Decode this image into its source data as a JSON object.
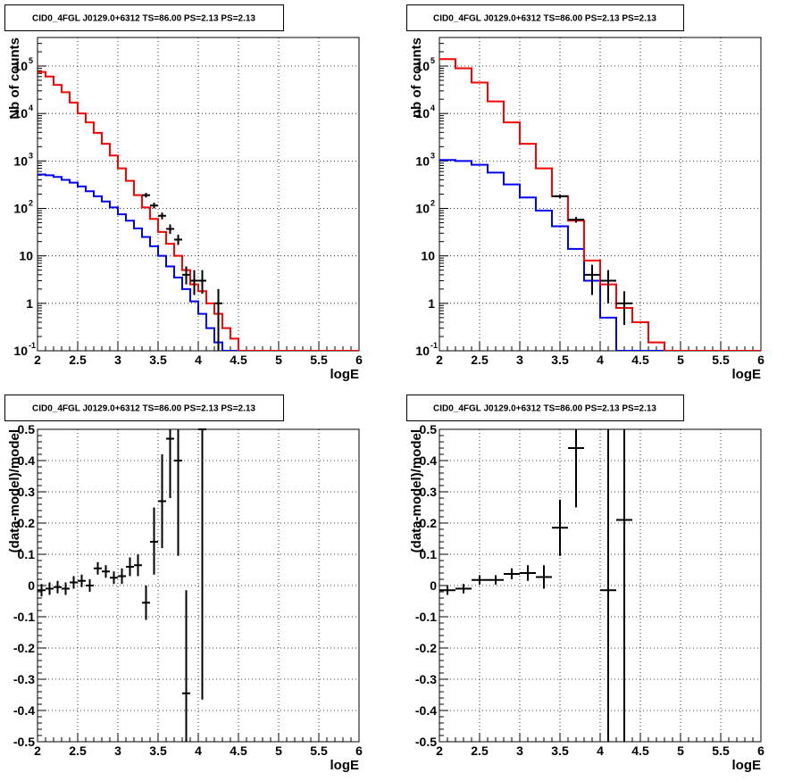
{
  "chart_data": [
    {
      "type": "line",
      "title": "CID0_4FGL J0129.0+6312 TS=86.00 PS=2.13 PS=2.13",
      "xlabel": "logE",
      "ylabel": "Nb of counts",
      "xlim": [
        2,
        6
      ],
      "ylim": [
        0.1,
        400000
      ],
      "log_y": true,
      "grid": true,
      "x_ticks": [
        "2",
        "2.5",
        "3",
        "3.5",
        "4",
        "4.5",
        "5",
        "5.5",
        "6"
      ],
      "y_ticks": [
        {
          "base": "10",
          "exp": "-1"
        },
        {
          "base": "1",
          "exp": ""
        },
        {
          "base": "10",
          "exp": ""
        },
        {
          "base": "10",
          "exp": "2"
        },
        {
          "base": "10",
          "exp": "3"
        },
        {
          "base": "10",
          "exp": "4"
        },
        {
          "base": "10",
          "exp": "5"
        }
      ],
      "series_colors": {
        "total": "#ff0000",
        "background": "#0000ff",
        "data": "#000000"
      },
      "bin_edges": [
        2.0,
        2.1,
        2.2,
        2.3,
        2.4,
        2.5,
        2.6,
        2.7,
        2.8,
        2.9,
        3.0,
        3.1,
        3.2,
        3.3,
        3.4,
        3.5,
        3.6,
        3.7,
        3.8,
        3.9,
        4.0,
        4.1,
        4.2,
        4.3,
        4.4,
        4.5,
        4.6,
        4.7,
        4.8,
        4.9,
        5.0,
        5.1,
        5.2,
        5.3,
        5.4,
        5.5,
        5.6,
        5.7,
        5.8,
        5.9,
        6.0
      ],
      "series": [
        {
          "values": [
            75000,
            60000,
            40000,
            28000,
            17000,
            10000,
            6500,
            3900,
            2300,
            1300,
            700,
            380,
            190,
            105,
            60,
            32,
            18,
            10,
            5,
            2.5,
            1.8,
            1.0,
            0.6,
            0.3,
            0.18,
            0.1,
            0.1,
            0.1,
            0.1,
            0.1,
            0.1,
            0.1,
            0.1,
            0.1,
            0.1,
            0.1,
            0.1,
            0.1,
            0.1,
            0.1
          ]
        },
        {
          "values": [
            520,
            500,
            460,
            400,
            350,
            290,
            230,
            180,
            140,
            105,
            75,
            55,
            38,
            25,
            16,
            10,
            6,
            3.5,
            2,
            1.1,
            0.6,
            0.3,
            0.15,
            0.1,
            0.1,
            0.1,
            0.1,
            0.1,
            0.1,
            0.1,
            0.1,
            0.1,
            0.1,
            0.1,
            0.1,
            0.1,
            0.1,
            0.1,
            0.1,
            0.1
          ]
        },
        {
          "points": [
            {
              "x": 3.35,
              "y": 190,
              "ylo": 170,
              "yhi": 212
            },
            {
              "x": 3.45,
              "y": 115,
              "ylo": 100,
              "yhi": 132
            },
            {
              "x": 3.55,
              "y": 70,
              "ylo": 59,
              "yhi": 82
            },
            {
              "x": 3.65,
              "y": 37,
              "ylo": 29,
              "yhi": 46
            },
            {
              "x": 3.75,
              "y": 22,
              "ylo": 17,
              "yhi": 28
            },
            {
              "x": 3.85,
              "y": 4,
              "ylo": 2.5,
              "yhi": 6
            },
            {
              "x": 3.95,
              "y": 3,
              "ylo": 1.5,
              "yhi": 5
            },
            {
              "x": 4.05,
              "y": 3,
              "ylo": 1.6,
              "yhi": 5
            },
            {
              "x": 4.25,
              "y": 1,
              "ylo": 0.1,
              "yhi": 2
            }
          ]
        }
      ]
    },
    {
      "type": "line",
      "title": "CID0_4FGL J0129.0+6312 TS=86.00 PS=2.13 PS=2.13",
      "xlabel": "logE",
      "ylabel": "nb of counts",
      "xlim": [
        2,
        6
      ],
      "ylim": [
        0.1,
        400000
      ],
      "log_y": true,
      "grid": true,
      "x_ticks": [
        "2",
        "2.5",
        "3",
        "3.5",
        "4",
        "4.5",
        "5",
        "5.5",
        "6"
      ],
      "y_ticks": [
        {
          "base": "10",
          "exp": "-1"
        },
        {
          "base": "1",
          "exp": ""
        },
        {
          "base": "10",
          "exp": ""
        },
        {
          "base": "10",
          "exp": "2"
        },
        {
          "base": "10",
          "exp": "3"
        },
        {
          "base": "10",
          "exp": "4"
        },
        {
          "base": "10",
          "exp": "5"
        }
      ],
      "series_colors": {
        "total": "#ff0000",
        "background": "#0000ff",
        "data": "#000000"
      },
      "bin_edges": [
        2.0,
        2.2,
        2.4,
        2.6,
        2.8,
        3.0,
        3.2,
        3.4,
        3.6,
        3.8,
        4.0,
        4.2,
        4.4,
        4.6,
        4.8,
        5.0,
        5.2,
        5.4,
        5.6,
        5.8,
        6.0
      ],
      "series": [
        {
          "values": [
            140000,
            90000,
            45000,
            18000,
            6500,
            2300,
            700,
            180,
            55,
            8,
            2.5,
            0.8,
            0.4,
            0.15,
            0.1,
            0.1,
            0.1,
            0.1,
            0.1,
            0.1
          ]
        },
        {
          "values": [
            1050,
            1000,
            830,
            570,
            320,
            170,
            90,
            42,
            14,
            3,
            0.5,
            0.1,
            0.1,
            0.1,
            0.1,
            0.1,
            0.1,
            0.1,
            0.1,
            0.1
          ]
        },
        {
          "points": [
            {
              "x": 3.5,
              "y": 180,
              "ylo": 165,
              "yhi": 197
            },
            {
              "x": 3.7,
              "y": 58,
              "ylo": 50,
              "yhi": 66
            },
            {
              "x": 3.9,
              "y": 4,
              "ylo": 1.5,
              "yhi": 6.5
            },
            {
              "x": 4.1,
              "y": 3,
              "ylo": 1,
              "yhi": 5
            },
            {
              "x": 4.3,
              "y": 1,
              "ylo": 0.35,
              "yhi": 1.8
            }
          ]
        }
      ]
    },
    {
      "type": "scatter",
      "title": "CID0_4FGL J0129.0+6312 TS=86.00 PS=2.13 PS=2.13",
      "xlabel": "logE",
      "ylabel": "(data-model)/model",
      "xlim": [
        2,
        6
      ],
      "ylim": [
        -0.5,
        0.5
      ],
      "grid": true,
      "x_ticks": [
        "2",
        "2.5",
        "3",
        "3.5",
        "4",
        "4.5",
        "5",
        "5.5",
        "6"
      ],
      "y_ticks": [
        "-0.5",
        "-0.4",
        "-0.3",
        "-0.2",
        "-0.1",
        "0",
        "0.1",
        "0.2",
        "0.3",
        "0.4",
        "0.5"
      ],
      "points": [
        {
          "x": 2.05,
          "y": -0.015,
          "ylo": -0.035,
          "yhi": 0.005
        },
        {
          "x": 2.15,
          "y": -0.01,
          "ylo": -0.03,
          "yhi": 0.01
        },
        {
          "x": 2.25,
          "y": -0.005,
          "ylo": -0.025,
          "yhi": 0.015
        },
        {
          "x": 2.35,
          "y": -0.01,
          "ylo": -0.03,
          "yhi": 0.01
        },
        {
          "x": 2.45,
          "y": 0.01,
          "ylo": -0.01,
          "yhi": 0.03
        },
        {
          "x": 2.55,
          "y": 0.015,
          "ylo": -0.005,
          "yhi": 0.035
        },
        {
          "x": 2.65,
          "y": 0.0,
          "ylo": -0.02,
          "yhi": 0.02
        },
        {
          "x": 2.75,
          "y": 0.055,
          "ylo": 0.035,
          "yhi": 0.075
        },
        {
          "x": 2.85,
          "y": 0.045,
          "ylo": 0.025,
          "yhi": 0.065
        },
        {
          "x": 2.95,
          "y": 0.025,
          "ylo": 0.005,
          "yhi": 0.045
        },
        {
          "x": 3.05,
          "y": 0.03,
          "ylo": 0.005,
          "yhi": 0.055
        },
        {
          "x": 3.15,
          "y": 0.06,
          "ylo": 0.03,
          "yhi": 0.09
        },
        {
          "x": 3.25,
          "y": 0.065,
          "ylo": 0.03,
          "yhi": 0.1
        },
        {
          "x": 3.35,
          "y": -0.055,
          "ylo": -0.11,
          "yhi": 0.0
        },
        {
          "x": 3.45,
          "y": 0.14,
          "ylo": 0.035,
          "yhi": 0.25
        },
        {
          "x": 3.55,
          "y": 0.27,
          "ylo": 0.12,
          "yhi": 0.42
        },
        {
          "x": 3.65,
          "y": 0.47,
          "ylo": 0.28,
          "yhi": 0.5
        },
        {
          "x": 3.75,
          "y": 0.4,
          "ylo": 0.095,
          "yhi": 0.5
        },
        {
          "x": 3.85,
          "y": -0.345,
          "ylo": -0.5,
          "yhi": -0.015
        },
        {
          "x": 4.05,
          "y": 0.5,
          "ylo": -0.365,
          "yhi": 0.5
        }
      ]
    },
    {
      "type": "scatter",
      "title": "CID0_4FGL J0129.0+6312 TS=86.00 PS=2.13 PS=2.13",
      "xlabel": "logE",
      "ylabel": "(data-model)/model",
      "xlim": [
        2,
        6
      ],
      "ylim": [
        -0.5,
        0.5
      ],
      "grid": true,
      "x_ticks": [
        "2",
        "2.5",
        "3",
        "3.5",
        "4",
        "4.5",
        "5",
        "5.5",
        "6"
      ],
      "y_ticks": [
        "-0.5",
        "-0.4",
        "-0.3",
        "-0.2",
        "-0.1",
        "0",
        "0.1",
        "0.2",
        "0.3",
        "0.4",
        "0.5"
      ],
      "points": [
        {
          "x": 2.1,
          "y": -0.015,
          "ylo": -0.03,
          "yhi": 0.0
        },
        {
          "x": 2.3,
          "y": -0.01,
          "ylo": -0.025,
          "yhi": 0.005
        },
        {
          "x": 2.5,
          "y": 0.018,
          "ylo": 0.003,
          "yhi": 0.033
        },
        {
          "x": 2.7,
          "y": 0.018,
          "ylo": 0.003,
          "yhi": 0.033
        },
        {
          "x": 2.9,
          "y": 0.037,
          "ylo": 0.02,
          "yhi": 0.055
        },
        {
          "x": 3.1,
          "y": 0.04,
          "ylo": 0.015,
          "yhi": 0.065
        },
        {
          "x": 3.3,
          "y": 0.027,
          "ylo": -0.01,
          "yhi": 0.065
        },
        {
          "x": 3.5,
          "y": 0.185,
          "ylo": 0.095,
          "yhi": 0.275
        },
        {
          "x": 3.7,
          "y": 0.44,
          "ylo": 0.25,
          "yhi": 0.5
        },
        {
          "x": 4.1,
          "y": -0.015,
          "ylo": -0.5,
          "yhi": 0.5
        },
        {
          "x": 4.3,
          "y": 0.21,
          "ylo": -0.5,
          "yhi": 0.5
        }
      ]
    }
  ]
}
